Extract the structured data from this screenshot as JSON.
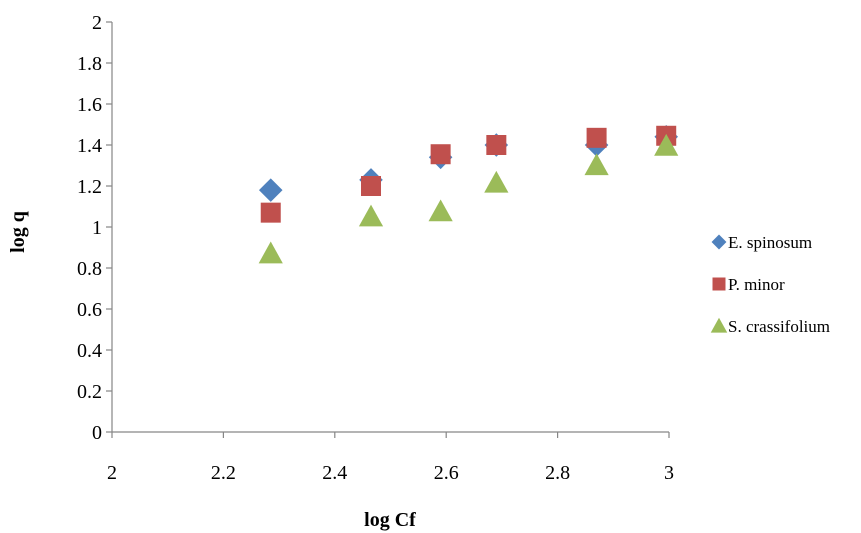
{
  "chart_data": {
    "type": "scatter",
    "title": "",
    "xlabel": "log Cf",
    "ylabel": "log q",
    "xlim": [
      2,
      3
    ],
    "ylim": [
      0,
      2
    ],
    "x_ticks": [
      "2",
      "2.2",
      "2.4",
      "2.6",
      "2.8",
      "3"
    ],
    "y_ticks": [
      "0",
      "0.2",
      "0.4",
      "0.6",
      "0.8",
      "1",
      "1.2",
      "1.4",
      "1.6",
      "1.8",
      "2"
    ],
    "grid": false,
    "legend_position": "right",
    "series": [
      {
        "name": "E. spinosum",
        "marker": "diamond",
        "color": "#4f81bd",
        "x": [
          2.285,
          2.465,
          2.59,
          2.69,
          2.87,
          2.995
        ],
        "y": [
          1.18,
          1.23,
          1.34,
          1.4,
          1.4,
          1.44
        ]
      },
      {
        "name": "P. minor",
        "marker": "square",
        "color": "#c0504d",
        "x": [
          2.285,
          2.465,
          2.59,
          2.69,
          2.87,
          2.995
        ],
        "y": [
          1.07,
          1.2,
          1.355,
          1.4,
          1.435,
          1.445
        ]
      },
      {
        "name": "S. crassifolium",
        "marker": "triangle",
        "color": "#9bbb59",
        "x": [
          2.285,
          2.465,
          2.59,
          2.69,
          2.87,
          2.995
        ],
        "y": [
          0.87,
          1.05,
          1.075,
          1.215,
          1.3,
          1.395
        ]
      }
    ]
  }
}
